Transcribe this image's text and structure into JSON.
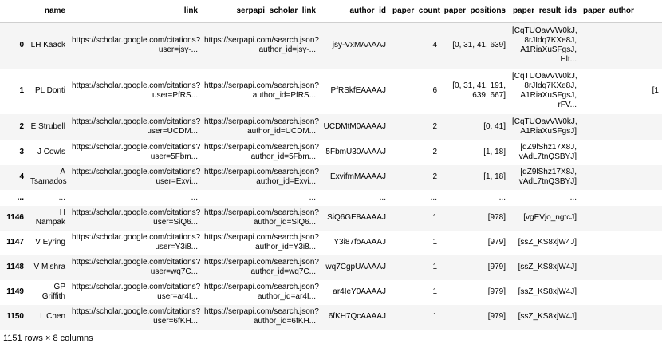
{
  "table": {
    "columns": [
      "name",
      "link",
      "serpapi_scholar_link",
      "author_id",
      "paper_count",
      "paper_positions",
      "paper_result_ids",
      "paper_author"
    ],
    "rows": [
      {
        "index": "0",
        "name": "LH Kaack",
        "link": "https://scholar.google.com/citations?\nuser=jsy-...",
        "serpapi": "https://serpapi.com/search.json?\nauthor_id=jsy-...",
        "author_id": "jsy-VxMAAAAJ",
        "paper_count": "4",
        "paper_positions": "[0, 31, 41, 639]",
        "paper_result_ids": "[CqTUOavVW0kJ,\n8rJIdq7KXe8J,\nA1RiaXuSFgsJ,\nHlt...",
        "paper_author": ""
      },
      {
        "index": "1",
        "name": "PL Donti",
        "link": "https://scholar.google.com/citations?\nuser=PfRS...",
        "serpapi": "https://serpapi.com/search.json?\nauthor_id=PfRS...",
        "author_id": "PfRSkfEAAAAJ",
        "paper_count": "6",
        "paper_positions": "[0, 31, 41, 191,\n639, 667]",
        "paper_result_ids": "[CqTUOavVW0kJ,\n8rJIdq7KXe8J,\nA1RiaXuSFgsJ,\nrFV...",
        "paper_author": "[1"
      },
      {
        "index": "2",
        "name": "E Strubell",
        "link": "https://scholar.google.com/citations?\nuser=UCDM...",
        "serpapi": "https://serpapi.com/search.json?\nauthor_id=UCDM...",
        "author_id": "UCDMtM0AAAAJ",
        "paper_count": "2",
        "paper_positions": "[0, 41]",
        "paper_result_ids": "[CqTUOavVW0kJ,\nA1RiaXuSFgsJ]",
        "paper_author": ""
      },
      {
        "index": "3",
        "name": "J Cowls",
        "link": "https://scholar.google.com/citations?\nuser=5Fbm...",
        "serpapi": "https://serpapi.com/search.json?\nauthor_id=5Fbm...",
        "author_id": "5FbmU30AAAAJ",
        "paper_count": "2",
        "paper_positions": "[1, 18]",
        "paper_result_ids": "[qZ9lShz17X8J,\nvAdL7tnQSBYJ]",
        "paper_author": ""
      },
      {
        "index": "4",
        "name": "A\nTsamados",
        "link": "https://scholar.google.com/citations?\nuser=Exvi...",
        "serpapi": "https://serpapi.com/search.json?\nauthor_id=Exvi...",
        "author_id": "ExvifmMAAAAJ",
        "paper_count": "2",
        "paper_positions": "[1, 18]",
        "paper_result_ids": "[qZ9lShz17X8J,\nvAdL7tnQSBYJ]",
        "paper_author": ""
      },
      {
        "index": "...",
        "name": "...",
        "link": "...",
        "serpapi": "...",
        "author_id": "...",
        "paper_count": "...",
        "paper_positions": "...",
        "paper_result_ids": "...",
        "paper_author": ""
      },
      {
        "index": "1146",
        "name": "H\nNampak",
        "link": "https://scholar.google.com/citations?\nuser=SiQ6...",
        "serpapi": "https://serpapi.com/search.json?\nauthor_id=SiQ6...",
        "author_id": "SiQ6GE8AAAAJ",
        "paper_count": "1",
        "paper_positions": "[978]",
        "paper_result_ids": "[vgEVjo_ngtcJ]",
        "paper_author": ""
      },
      {
        "index": "1147",
        "name": "V Eyring",
        "link": "https://scholar.google.com/citations?\nuser=Y3i8...",
        "serpapi": "https://serpapi.com/search.json?\nauthor_id=Y3i8...",
        "author_id": "Y3i87foAAAAJ",
        "paper_count": "1",
        "paper_positions": "[979]",
        "paper_result_ids": "[ssZ_KS8xjW4J]",
        "paper_author": ""
      },
      {
        "index": "1148",
        "name": "V Mishra",
        "link": "https://scholar.google.com/citations?\nuser=wq7C...",
        "serpapi": "https://serpapi.com/search.json?\nauthor_id=wq7C...",
        "author_id": "wq7CgpUAAAAJ",
        "paper_count": "1",
        "paper_positions": "[979]",
        "paper_result_ids": "[ssZ_KS8xjW4J]",
        "paper_author": ""
      },
      {
        "index": "1149",
        "name": "GP\nGriffith",
        "link": "https://scholar.google.com/citations?\nuser=ar4I...",
        "serpapi": "https://serpapi.com/search.json?\nauthor_id=ar4I...",
        "author_id": "ar4IeY0AAAAJ",
        "paper_count": "1",
        "paper_positions": "[979]",
        "paper_result_ids": "[ssZ_KS8xjW4J]",
        "paper_author": ""
      },
      {
        "index": "1150",
        "name": "L Chen",
        "link": "https://scholar.google.com/citations?\nuser=6fKH...",
        "serpapi": "https://serpapi.com/search.json?\nauthor_id=6fKH...",
        "author_id": "6fKH7QcAAAAJ",
        "paper_count": "1",
        "paper_positions": "[979]",
        "paper_result_ids": "[ssZ_KS8xjW4J]",
        "paper_author": ""
      }
    ]
  },
  "footer": {
    "shape": "1151 rows × 8 columns"
  }
}
